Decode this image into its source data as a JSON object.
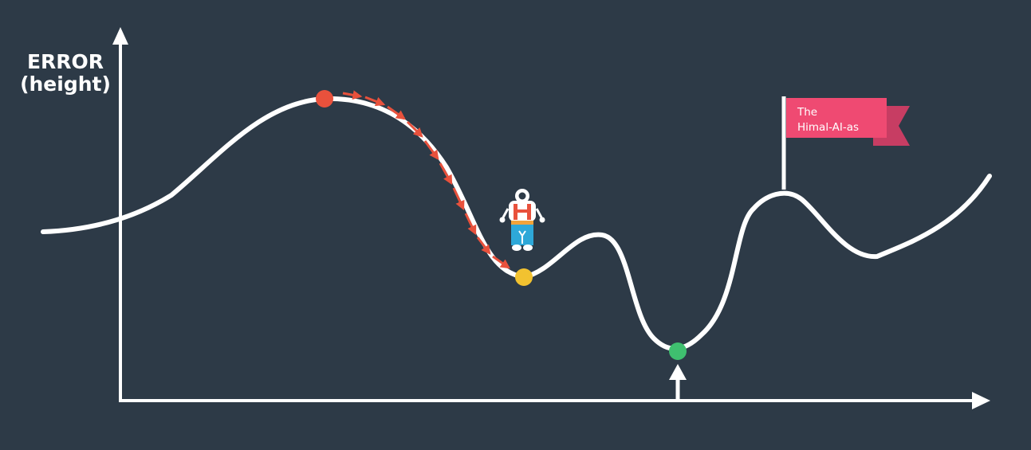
{
  "axis": {
    "y_label_line1": "ERROR",
    "y_label_line2": "(height)"
  },
  "flag": {
    "line1": "The",
    "line2": "Himal-AI-as"
  },
  "colors": {
    "background": "#2d3a47",
    "curve": "#ffffff",
    "start_point": "#e8513c",
    "local_minimum": "#f2c230",
    "global_minimum": "#3fbf6f",
    "descent_arrows": "#e8513c",
    "flag": "#ef4a72",
    "flag_tail": "#c73d63",
    "robot_body": "#ffffff",
    "robot_accent": "#e8513c",
    "robot_legs": "#2ea8d8",
    "robot_belt": "#f2a33a"
  },
  "icons": {
    "character": "robot-hiker-icon",
    "flag": "flag-icon"
  }
}
